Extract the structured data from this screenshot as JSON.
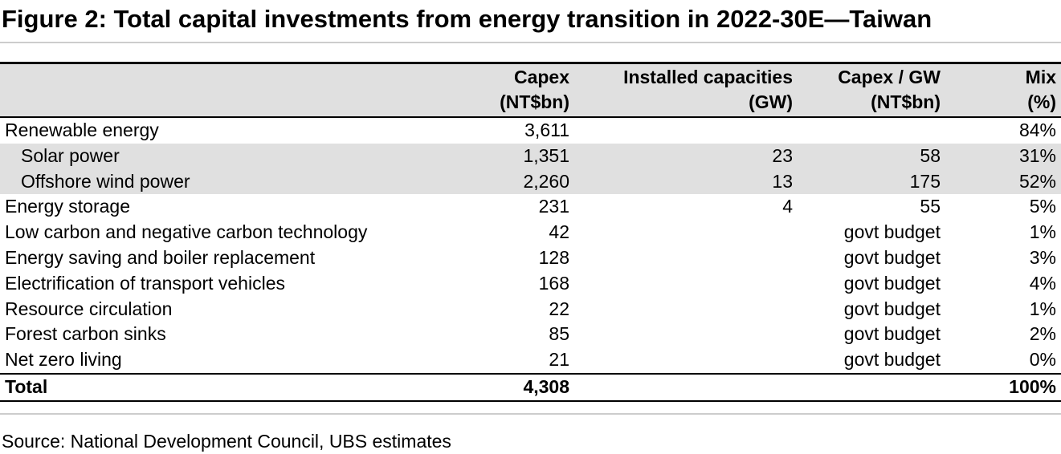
{
  "title": "Figure 2: Total capital investments from energy transition in 2022-30E—Taiwan",
  "table": {
    "headers": [
      {
        "line1": "",
        "line2": ""
      },
      {
        "line1": "Capex",
        "line2": "(NT$bn)"
      },
      {
        "line1": "Installed capacities",
        "line2": "(GW)"
      },
      {
        "line1": "Capex / GW",
        "line2": "(NT$bn)"
      },
      {
        "line1": "Mix",
        "line2": "(%)"
      }
    ],
    "rows": [
      {
        "label": "Renewable energy",
        "capex": "3,611",
        "capacity": "",
        "capex_per_gw": "",
        "mix": "84%"
      },
      {
        "label": "Solar power",
        "capex": "1,351",
        "capacity": "23",
        "capex_per_gw": "58",
        "mix": "31%"
      },
      {
        "label": "Offshore wind power",
        "capex": "2,260",
        "capacity": "13",
        "capex_per_gw": "175",
        "mix": "52%"
      },
      {
        "label": "Energy storage",
        "capex": "231",
        "capacity": "4",
        "capex_per_gw": "55",
        "mix": "5%"
      },
      {
        "label": "Low carbon and negative carbon technology",
        "capex": "42",
        "capacity": "",
        "capex_per_gw": "govt budget",
        "mix": "1%"
      },
      {
        "label": "Energy saving and boiler replacement",
        "capex": "128",
        "capacity": "",
        "capex_per_gw": "govt budget",
        "mix": "3%"
      },
      {
        "label": "Electrification of transport vehicles",
        "capex": "168",
        "capacity": "",
        "capex_per_gw": "govt budget",
        "mix": "4%"
      },
      {
        "label": "Resource circulation",
        "capex": "22",
        "capacity": "",
        "capex_per_gw": "govt budget",
        "mix": "1%"
      },
      {
        "label": "Forest carbon sinks",
        "capex": "85",
        "capacity": "",
        "capex_per_gw": "govt budget",
        "mix": "2%"
      },
      {
        "label": "Net zero living",
        "capex": "21",
        "capacity": "",
        "capex_per_gw": "govt budget",
        "mix": "0%"
      }
    ],
    "total": {
      "label": "Total",
      "capex": "4,308",
      "capacity": "",
      "capex_per_gw": "",
      "mix": "100%"
    }
  },
  "source": "Source: National Development Council, UBS estimates"
}
